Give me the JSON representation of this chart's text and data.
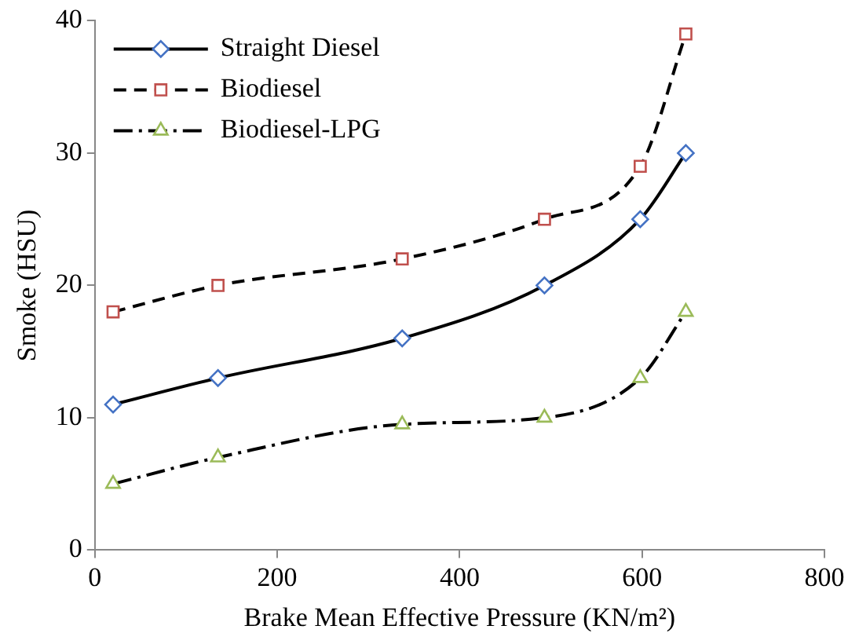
{
  "chart_data": {
    "type": "line",
    "xlabel": "Brake Mean Effective Pressure (KN/m²)",
    "ylabel": "Smoke (HSU)",
    "xlim": [
      0,
      800
    ],
    "xticks": [
      0,
      200,
      400,
      600,
      800
    ],
    "ylim": [
      0,
      40
    ],
    "yticks": [
      0,
      10,
      20,
      30,
      40
    ],
    "grid": false,
    "legend": "top left",
    "series": [
      {
        "name": "Straight Diesel",
        "color": "#4472c4",
        "marker": "diamond",
        "line_style": "solid",
        "x": [
          20,
          135,
          337,
          493,
          598,
          648
        ],
        "values": [
          11,
          13,
          16,
          20,
          25,
          30
        ]
      },
      {
        "name": "Biodiesel",
        "color": "#c0504d",
        "marker": "square",
        "line_style": "dashed",
        "x": [
          20,
          135,
          337,
          493,
          598,
          648
        ],
        "values": [
          18,
          20,
          22,
          25,
          29,
          39
        ]
      },
      {
        "name": "Biodiesel-LPG",
        "color": "#9bbb59",
        "marker": "triangle",
        "line_style": "dashdot",
        "x": [
          20,
          135,
          337,
          493,
          598,
          648
        ],
        "values": [
          5,
          7,
          9.5,
          10,
          13,
          18
        ]
      }
    ]
  }
}
